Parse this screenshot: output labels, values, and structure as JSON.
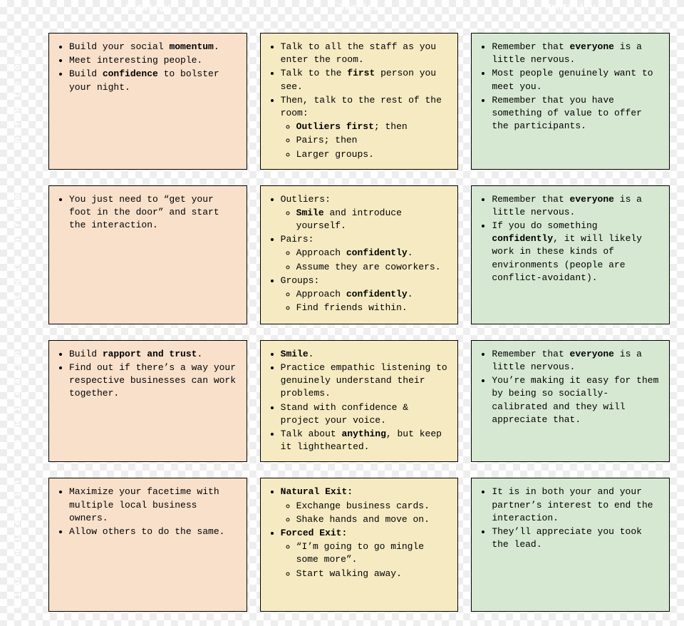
{
  "columns": [
    "Strategy",
    "Tactics",
    "Mentality"
  ],
  "rows": [
    "Entering the room",
    "Starting the interaction",
    "In the interaction",
    "Exiting the interaction"
  ],
  "colors": {
    "strategy_bg": "#f8e0cb",
    "tactics_bg": "#f6eac2",
    "mentality_bg": "#d7e8d2",
    "border": "#000000",
    "header_text": "#ffffff"
  },
  "cells": {
    "r1c1": "<ul><li>Build your social <strong>momentum</strong>.</li><li>Meet interesting people.</li><li>Build <strong>confidence</strong> to bolster your night.</li></ul>",
    "r1c2": "<ul><li>Talk to all the staff as you enter the room.</li><li>Talk to the <strong>first</strong> person you see.</li><li>Then, talk to the rest of the room:<ul><li><strong>Outliers first</strong>; then</li><li>Pairs; then</li><li>Larger groups.</li></ul></li></ul>",
    "r1c3": "<ul><li>Remember that <strong>everyone</strong> is a little nervous.</li><li>Most people genuinely want to meet you.</li><li>Remember that you have something of value to offer the participants.</li></ul>",
    "r2c1": "<ul><li>You just need to “get your foot in the door” and start the interaction.</li></ul>",
    "r2c2": "<ul><li>Outliers:<ul><li><strong>Smile</strong> and introduce yourself.</li></ul></li><li>Pairs:<ul><li>Approach <strong>confidently</strong>.</li><li>Assume they are coworkers.</li></ul></li><li>Groups:<ul><li>Approach <strong>confidently</strong>.</li><li>Find friends within.</li></ul></li></ul>",
    "r2c3": "<ul><li>Remember that <strong>everyone</strong> is a little nervous.</li><li>If you do something <strong>confidently</strong>, it will likely work in these kinds of environments (people are conflict-avoidant).</li></ul>",
    "r3c1": "<ul><li>Build <strong>rapport and trust</strong>.</li><li>Find out if there’s a way your respective businesses can work together.</li></ul>",
    "r3c2": "<ul><li><strong>Smile</strong>.</li><li>Practice empathic listening to genuinely understand their problems.</li><li>Stand with confidence &amp; project your voice.</li><li>Talk about <strong>anything</strong>, but keep it lighthearted.</li></ul>",
    "r3c3": "<ul><li>Remember that <strong>everyone</strong> is a little nervous.</li><li>You’re making it easy for them by being so socially-calibrated and they will appreciate that.</li></ul>",
    "r4c1": "<ul><li>Maximize your facetime with multiple local business owners.</li><li>Allow others to do the same.</li></ul>",
    "r4c2": "<ul><li><strong>Natural Exit:</strong><ul><li>Exchange business cards.</li><li>Shake hands and move on.</li></ul></li><li><strong>Forced Exit:</strong><ul><li>“I’m going to go mingle some more”.</li><li>Start walking away.</li></ul></li></ul>",
    "r4c3": "<ul><li>It is in both your and your partner’s interest to end the interaction.</li><li>They’ll appreciate you took the lead.</li></ul>"
  }
}
